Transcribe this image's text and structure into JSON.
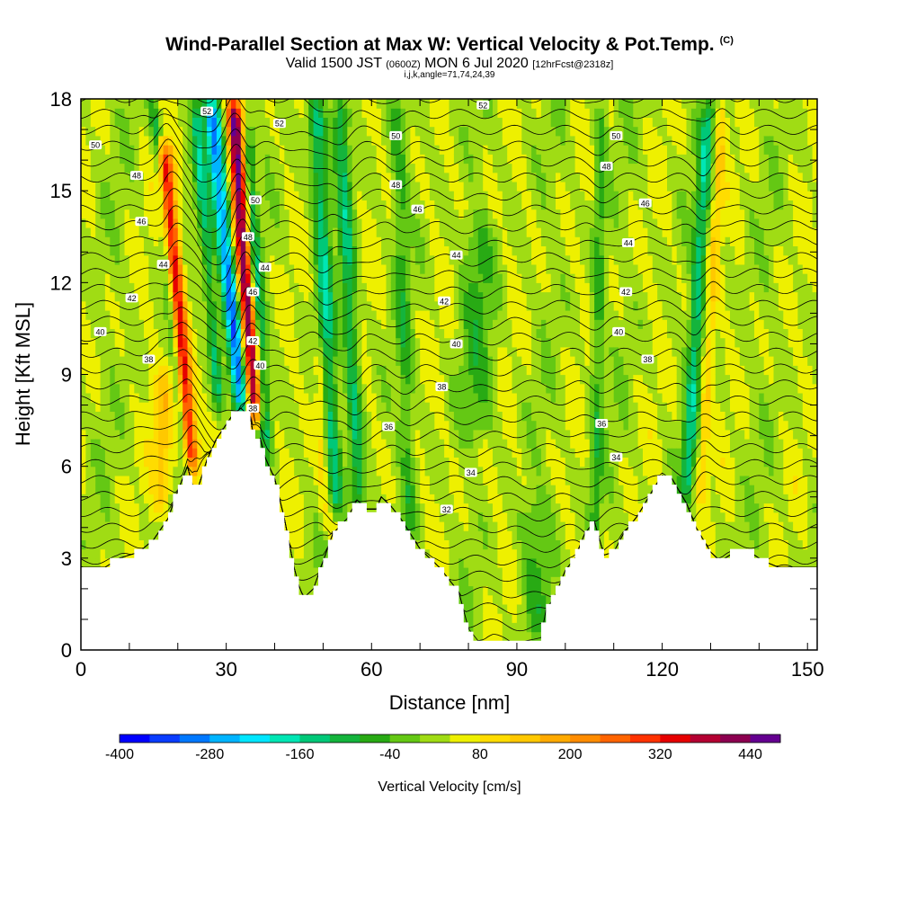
{
  "title": {
    "main": "Wind-Parallel Section at Max W: Vertical Velocity & Pot.Temp.",
    "mark": "(C)",
    "valid_prefix": "Valid 1500 JST",
    "valid_z": "(0600Z)",
    "valid_date": "MON 6 Jul 2020",
    "fcst": "[12hrFcst@2318z]",
    "ijk": "i,j,k,angle=71,74,24,39"
  },
  "chart_data": {
    "type": "heatmap",
    "xlabel": "Distance [nm]",
    "ylabel": "Height [Kft MSL]",
    "xlim": [
      0,
      152
    ],
    "ylim": [
      0,
      18
    ],
    "x_ticks": [
      "0",
      "30",
      "60",
      "90",
      "120",
      "150"
    ],
    "y_ticks": [
      "0",
      "3",
      "6",
      "9",
      "12",
      "15",
      "18"
    ],
    "colorbar": {
      "label": "Vertical Velocity [cm/s]",
      "tick_labels": [
        "-400",
        "-280",
        "-160",
        "-40",
        "80",
        "200",
        "320",
        "440"
      ],
      "levels": [
        -400,
        -360,
        -320,
        -280,
        -240,
        -200,
        -160,
        -120,
        -80,
        -40,
        0,
        40,
        80,
        120,
        160,
        200,
        240,
        280,
        320,
        360,
        400,
        440
      ],
      "colors": [
        "#0000ff",
        "#0a3cff",
        "#0078ff",
        "#00b4ff",
        "#00e6ff",
        "#00e6b4",
        "#00c878",
        "#14b43c",
        "#28aa14",
        "#64c814",
        "#a0dc14",
        "#eef000",
        "#ffdc00",
        "#ffc800",
        "#ffaa00",
        "#ff8c00",
        "#ff6400",
        "#ff3200",
        "#e60000",
        "#b40032",
        "#8c0050",
        "#640090"
      ]
    },
    "terrain_kft": {
      "x": [
        0,
        5,
        8,
        12,
        15,
        18,
        20,
        22,
        23,
        24,
        26,
        28,
        31,
        33,
        35,
        36,
        37,
        38,
        40,
        42,
        44,
        45,
        46,
        48,
        50,
        52,
        55,
        57,
        59,
        61,
        62,
        64,
        66,
        68,
        70,
        74,
        78,
        80,
        82,
        85,
        88,
        90,
        92,
        95,
        96,
        98,
        100,
        102,
        104,
        106,
        108,
        110,
        112,
        115,
        118,
        120,
        122,
        125,
        127,
        130,
        132,
        135,
        138,
        141,
        144,
        147,
        150,
        152
      ],
      "y": [
        2.7,
        2.7,
        3.0,
        3.2,
        3.6,
        4.3,
        5.2,
        6.0,
        5.4,
        5.2,
        6.2,
        6.9,
        7.6,
        7.9,
        7.6,
        6.6,
        6.9,
        6.3,
        5.6,
        4.3,
        2.7,
        2.1,
        1.7,
        2.0,
        2.9,
        3.8,
        4.3,
        4.9,
        4.6,
        4.6,
        5.0,
        4.7,
        4.3,
        3.8,
        3.3,
        2.7,
        1.9,
        0.7,
        0.3,
        0.4,
        0.3,
        0.2,
        0.3,
        0.4,
        1.3,
        1.8,
        2.6,
        3.0,
        3.8,
        4.2,
        3.1,
        3.2,
        3.8,
        4.4,
        5.2,
        5.7,
        5.6,
        4.8,
        4.0,
        3.2,
        2.9,
        3.2,
        3.2,
        2.9,
        2.7,
        2.7,
        2.7,
        2.7
      ]
    },
    "velocity_features": [
      {
        "x": 23.0,
        "y_bottom": 5.8,
        "y_top": 16.5,
        "w": 320,
        "half_width_nm": 1.7,
        "lean_nm_per_kft": -0.55
      },
      {
        "x": 21.5,
        "y_bottom": 5.8,
        "y_top": 18.0,
        "w": -130,
        "half_width_nm": 1.0,
        "lean_nm_per_kft": -0.55
      },
      {
        "x": 28.5,
        "y_bottom": 8.0,
        "y_top": 18.0,
        "w": -150,
        "half_width_nm": 1.2,
        "lean_nm_per_kft": -0.5
      },
      {
        "x": 33.5,
        "y_bottom": 7.6,
        "y_top": 18.0,
        "w": -340,
        "half_width_nm": 1.8,
        "lean_nm_per_kft": -0.65
      },
      {
        "x": 35.8,
        "y_bottom": 7.5,
        "y_top": 18.0,
        "w": 420,
        "half_width_nm": 1.6,
        "lean_nm_per_kft": -0.42
      },
      {
        "x": 38.5,
        "y_bottom": 6.5,
        "y_top": 17.0,
        "w": -160,
        "half_width_nm": 1.2,
        "lean_nm_per_kft": -0.4
      },
      {
        "x": 52.5,
        "y_bottom": 4.5,
        "y_top": 18.0,
        "w": -170,
        "half_width_nm": 1.6,
        "lean_nm_per_kft": -0.3
      },
      {
        "x": 57.5,
        "y_bottom": 4.5,
        "y_top": 18.0,
        "w": -150,
        "half_width_nm": 1.5,
        "lean_nm_per_kft": -0.3
      },
      {
        "x": 51.0,
        "y_bottom": 4.0,
        "y_top": 10.0,
        "w": 90,
        "half_width_nm": 1.4,
        "lean_nm_per_kft": -0.3
      },
      {
        "x": 68.0,
        "y_bottom": 3.8,
        "y_top": 18.0,
        "w": -80,
        "half_width_nm": 1.4,
        "lean_nm_per_kft": -0.2
      },
      {
        "x": 125.0,
        "y_bottom": 5.0,
        "y_top": 18.0,
        "w": -160,
        "half_width_nm": 1.4,
        "lean_nm_per_kft": 0.35
      },
      {
        "x": 128.0,
        "y_bottom": 5.0,
        "y_top": 18.0,
        "w": 90,
        "half_width_nm": 1.1,
        "lean_nm_per_kft": 0.35
      },
      {
        "x": 106.0,
        "y_bottom": 3.2,
        "y_top": 18.0,
        "w": -90,
        "half_width_nm": 1.3,
        "lean_nm_per_kft": 0.1
      },
      {
        "x": 17.0,
        "y_bottom": 4.5,
        "y_top": 9.0,
        "w": 110,
        "half_width_nm": 2.0,
        "lean_nm_per_kft": 0.0
      },
      {
        "x": 82.0,
        "y_bottom": 7.0,
        "y_top": 14.0,
        "w": -70,
        "half_width_nm": 3.5,
        "lean_nm_per_kft": 0.0
      },
      {
        "x": 94.0,
        "y_bottom": 0.6,
        "y_top": 5.0,
        "w": -70,
        "half_width_nm": 3.0,
        "lean_nm_per_kft": 0.0
      }
    ],
    "contour_labels": [
      {
        "text": "50",
        "x": 3.0,
        "y": 16.5
      },
      {
        "text": "48",
        "x": 11.5,
        "y": 15.5
      },
      {
        "text": "46",
        "x": 12.5,
        "y": 14.0
      },
      {
        "text": "44",
        "x": 17.0,
        "y": 12.6
      },
      {
        "text": "42",
        "x": 10.5,
        "y": 11.5
      },
      {
        "text": "40",
        "x": 4.0,
        "y": 10.4
      },
      {
        "text": "38",
        "x": 14.0,
        "y": 9.5
      },
      {
        "text": "52",
        "x": 26.0,
        "y": 17.6
      },
      {
        "text": "52",
        "x": 41.0,
        "y": 17.2
      },
      {
        "text": "50",
        "x": 36.0,
        "y": 14.7
      },
      {
        "text": "48",
        "x": 34.5,
        "y": 13.5
      },
      {
        "text": "44",
        "x": 38.0,
        "y": 12.5
      },
      {
        "text": "46",
        "x": 35.5,
        "y": 11.7
      },
      {
        "text": "42",
        "x": 35.5,
        "y": 10.1
      },
      {
        "text": "40",
        "x": 37.0,
        "y": 9.3
      },
      {
        "text": "38",
        "x": 35.5,
        "y": 7.9
      },
      {
        "text": "50",
        "x": 65.0,
        "y": 16.8
      },
      {
        "text": "48",
        "x": 65.0,
        "y": 15.2
      },
      {
        "text": "46",
        "x": 69.5,
        "y": 14.4
      },
      {
        "text": "44",
        "x": 77.5,
        "y": 12.9
      },
      {
        "text": "42",
        "x": 75.0,
        "y": 11.4
      },
      {
        "text": "40",
        "x": 77.5,
        "y": 10.0
      },
      {
        "text": "38",
        "x": 74.5,
        "y": 8.6
      },
      {
        "text": "36",
        "x": 63.5,
        "y": 7.3
      },
      {
        "text": "34",
        "x": 80.5,
        "y": 5.8
      },
      {
        "text": "32",
        "x": 75.5,
        "y": 4.6
      },
      {
        "text": "52",
        "x": 83.0,
        "y": 17.8
      },
      {
        "text": "50",
        "x": 110.5,
        "y": 16.8
      },
      {
        "text": "48",
        "x": 108.5,
        "y": 15.8
      },
      {
        "text": "46",
        "x": 116.5,
        "y": 14.6
      },
      {
        "text": "44",
        "x": 113.0,
        "y": 13.3
      },
      {
        "text": "42",
        "x": 112.5,
        "y": 11.7
      },
      {
        "text": "40",
        "x": 111.0,
        "y": 10.4
      },
      {
        "text": "38",
        "x": 117.0,
        "y": 9.5
      },
      {
        "text": "36",
        "x": 107.5,
        "y": 7.4
      },
      {
        "text": "34",
        "x": 110.5,
        "y": 6.3
      }
    ]
  }
}
